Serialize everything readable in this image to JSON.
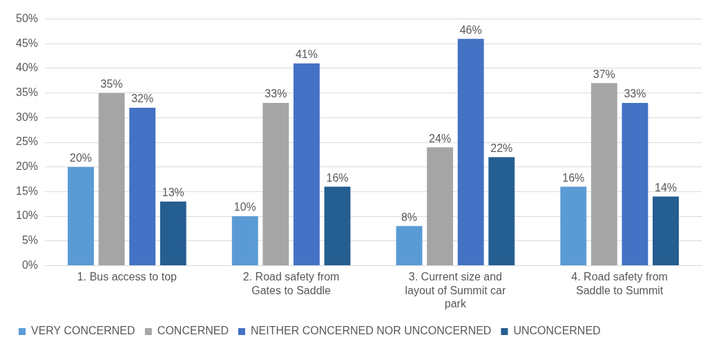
{
  "chart_data": {
    "type": "bar",
    "categories": [
      "1. Bus access to top",
      "2. Road safety from Gates to Saddle",
      "3. Current size and layout of Summit car park",
      "4. Road safety from Saddle to Summit"
    ],
    "series": [
      {
        "name": "VERY CONCERNED",
        "color": "#5b9bd5",
        "values": [
          20,
          10,
          8,
          16
        ],
        "value_labels": [
          "20%",
          "10%",
          "8%",
          "16%"
        ]
      },
      {
        "name": "CONCERNED",
        "color": "#a5a5a5",
        "values": [
          35,
          33,
          24,
          37
        ],
        "value_labels": [
          "35%",
          "33%",
          "24%",
          "37%"
        ]
      },
      {
        "name": "NEITHER CONCERNED NOR UNCONCERNED",
        "color": "#4472c4",
        "values": [
          32,
          41,
          46,
          33
        ],
        "value_labels": [
          "32%",
          "41%",
          "46%",
          "33%"
        ]
      },
      {
        "name": "UNCONCERNED",
        "color": "#255e91",
        "values": [
          13,
          16,
          22,
          14
        ],
        "value_labels": [
          "13%",
          "16%",
          "22%",
          "14%"
        ]
      }
    ],
    "ylim": [
      0,
      50
    ],
    "yticks": [
      {
        "value": 0,
        "label": "0%"
      },
      {
        "value": 5,
        "label": "5%"
      },
      {
        "value": 10,
        "label": "10%"
      },
      {
        "value": 15,
        "label": "15%"
      },
      {
        "value": 20,
        "label": "20%"
      },
      {
        "value": 25,
        "label": "25%"
      },
      {
        "value": 30,
        "label": "30%"
      },
      {
        "value": 35,
        "label": "35%"
      },
      {
        "value": 40,
        "label": "40%"
      },
      {
        "value": 45,
        "label": "45%"
      },
      {
        "value": 50,
        "label": "50%"
      }
    ],
    "grid": "y",
    "legend": "bottom"
  }
}
